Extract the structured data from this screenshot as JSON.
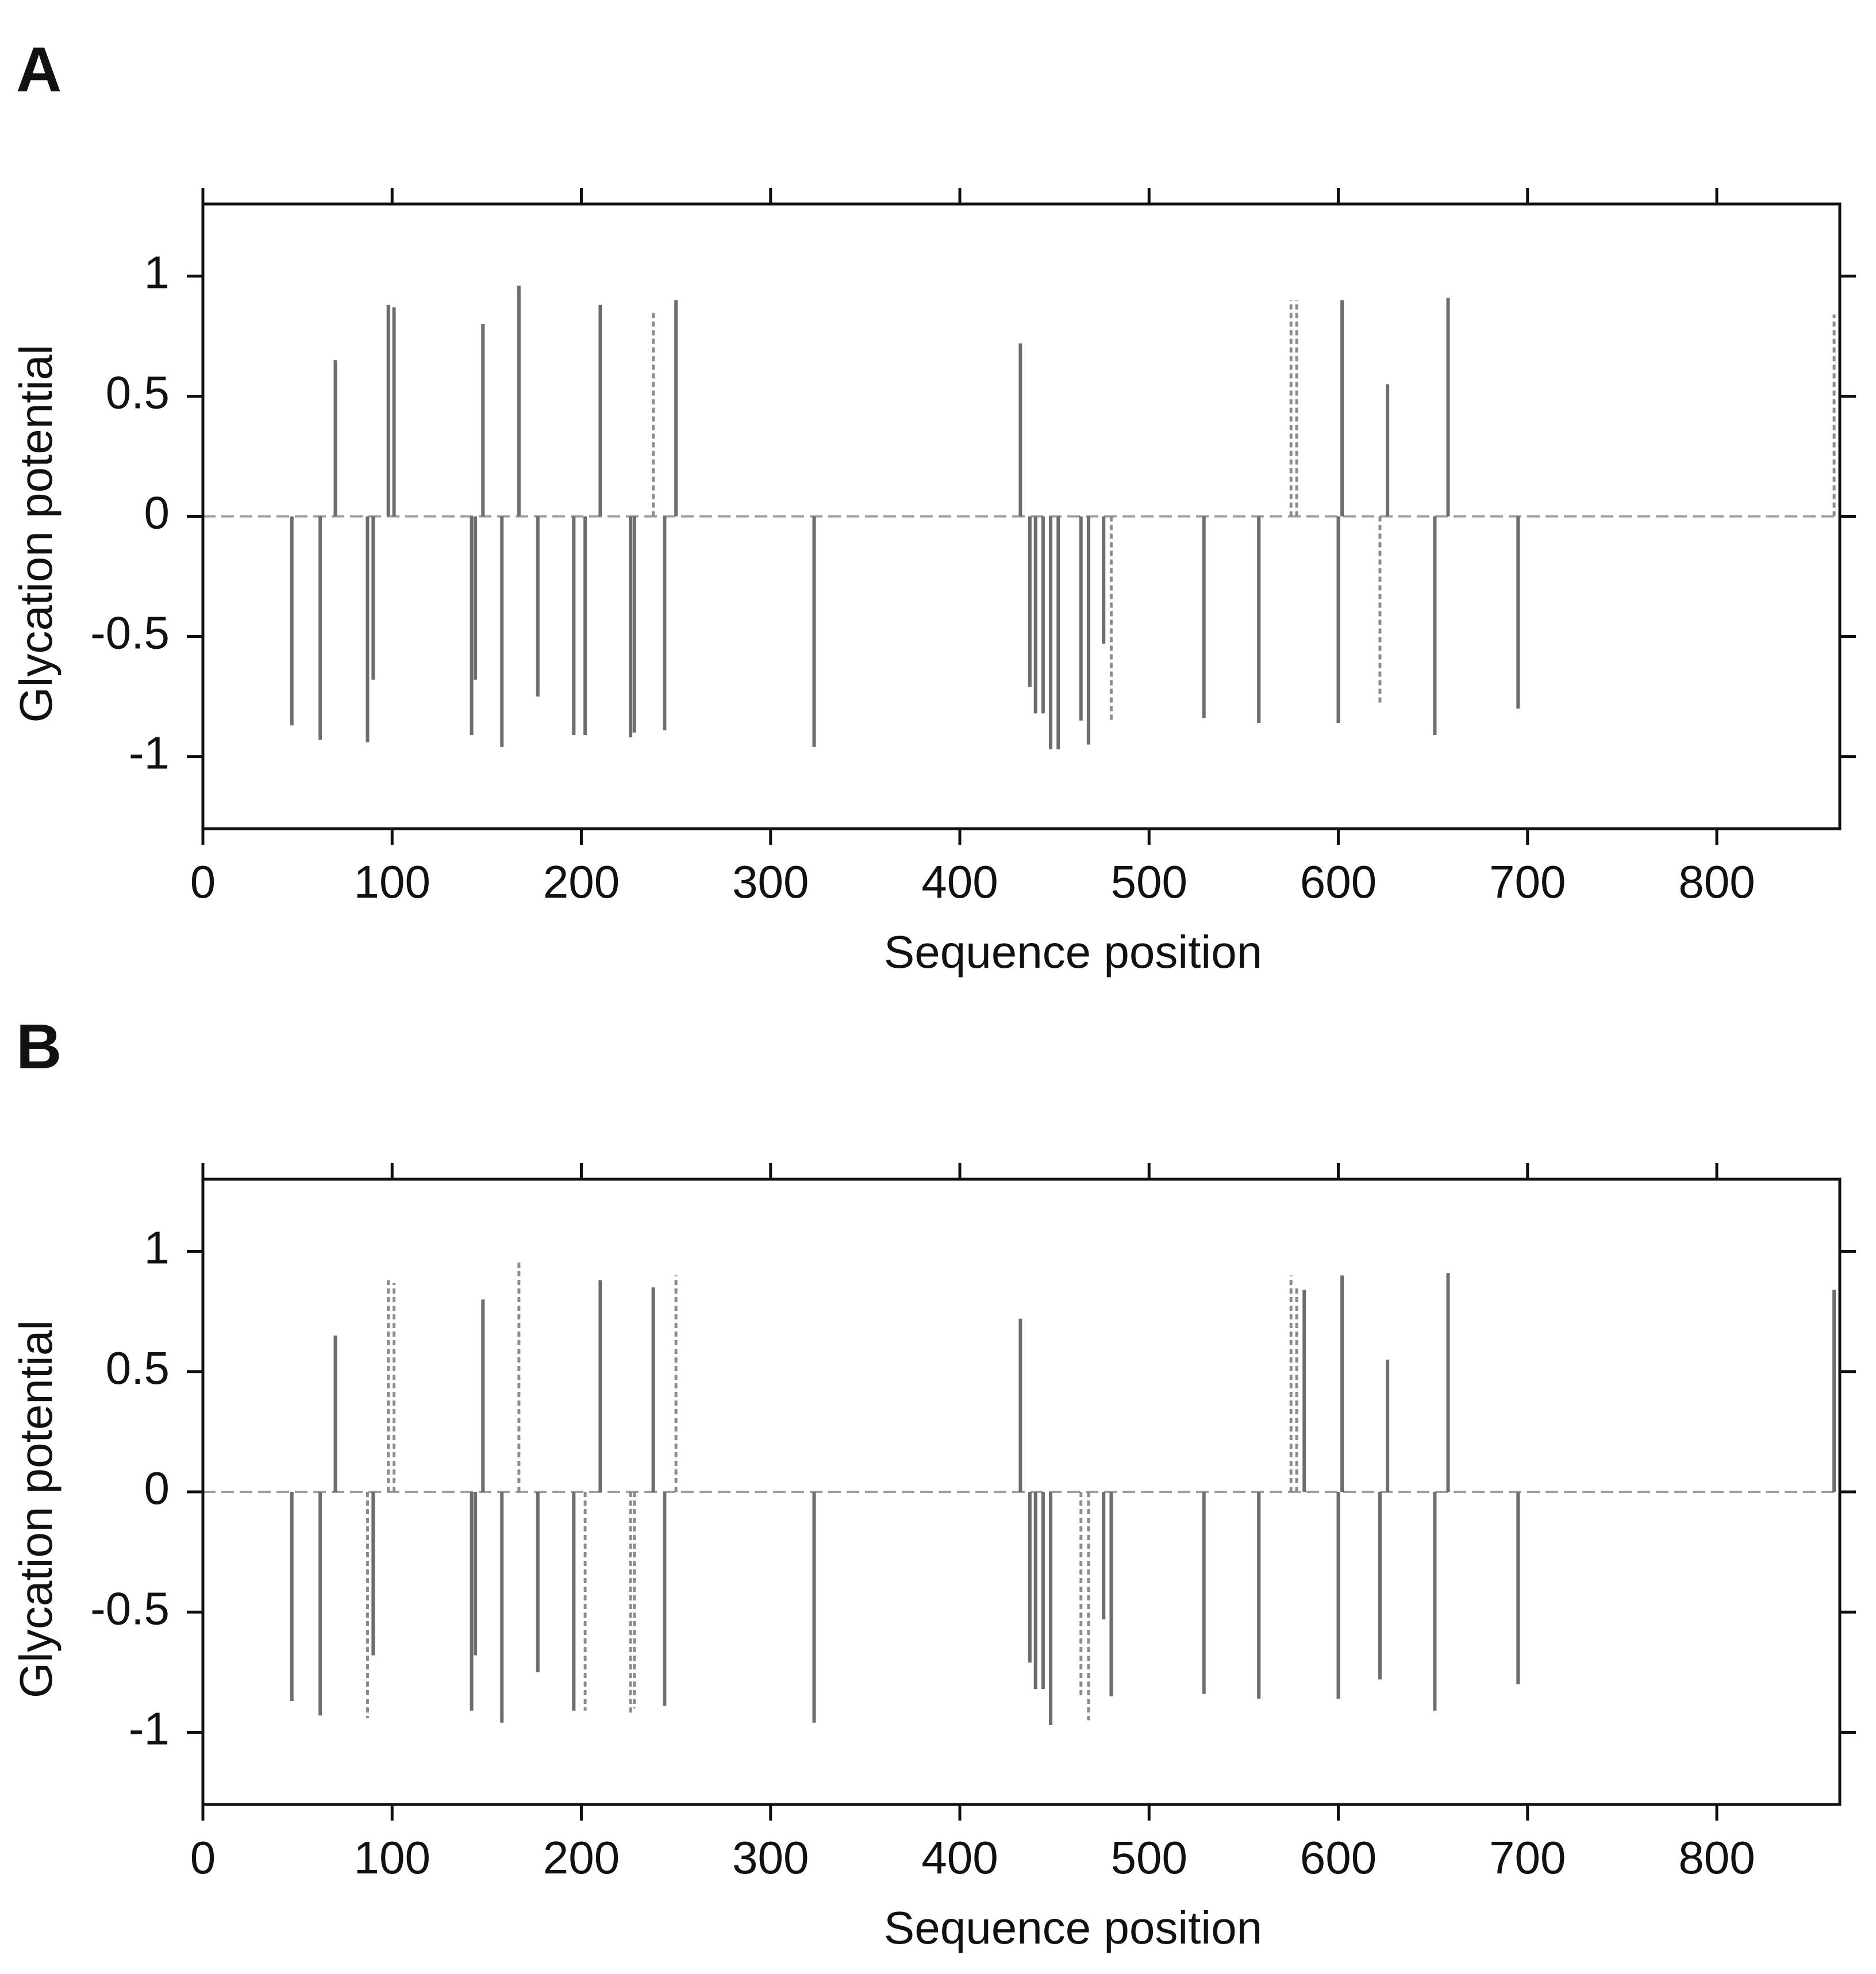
{
  "colors": {
    "solid": "#6d6d6d",
    "dashed": "#8c8c8c",
    "baseline": "#9e9e9e",
    "axis": "#111111"
  },
  "chart_data": [
    {
      "panel": "A",
      "type": "bar",
      "xlabel": "Sequence position",
      "ylabel": "Glycation potential",
      "xlim": [
        0,
        865
      ],
      "ylim": [
        -1.3,
        1.3
      ],
      "xticks": [
        "0",
        "100",
        "200",
        "300",
        "400",
        "500",
        "600",
        "700",
        "800"
      ],
      "yticks": [
        "1",
        "0.5",
        "0",
        "-0.5",
        "-1"
      ],
      "series": [
        {
          "name": "solid",
          "x": [
            47,
            62,
            70,
            87,
            90,
            98,
            101,
            142,
            144,
            148,
            158,
            167,
            177,
            196,
            202,
            210,
            226,
            228,
            244,
            250,
            323,
            432,
            437,
            440,
            444,
            448,
            452,
            464,
            468,
            476,
            529,
            558,
            600,
            602,
            626,
            651,
            658,
            695
          ],
          "values": [
            -0.87,
            -0.93,
            0.65,
            -0.94,
            -0.68,
            0.88,
            0.87,
            -0.91,
            -0.68,
            0.8,
            -0.96,
            0.96,
            -0.75,
            -0.91,
            -0.91,
            0.88,
            -0.92,
            -0.9,
            -0.89,
            0.9,
            -0.96,
            0.72,
            -0.71,
            -0.82,
            -0.82,
            -0.97,
            -0.97,
            -0.85,
            -0.95,
            -0.53,
            -0.84,
            -0.86,
            -0.86,
            0.9,
            0.55,
            -0.91,
            0.91,
            -0.8
          ]
        },
        {
          "name": "dashed",
          "x": [
            238,
            480,
            575,
            578,
            622,
            862
          ],
          "values": [
            0.85,
            -0.85,
            0.9,
            0.9,
            -0.78,
            0.84
          ]
        }
      ]
    },
    {
      "panel": "B",
      "type": "bar",
      "xlabel": "Sequence position",
      "ylabel": "Glycation potential",
      "xlim": [
        0,
        865
      ],
      "ylim": [
        -1.3,
        1.3
      ],
      "xticks": [
        "0",
        "100",
        "200",
        "300",
        "400",
        "500",
        "600",
        "700",
        "800"
      ],
      "yticks": [
        "1",
        "0.5",
        "0",
        "-0.5",
        "-1"
      ],
      "series": [
        {
          "name": "solid",
          "x": [
            47,
            62,
            70,
            90,
            142,
            144,
            148,
            158,
            177,
            196,
            210,
            238,
            244,
            323,
            432,
            437,
            440,
            444,
            448,
            476,
            480,
            529,
            558,
            582,
            600,
            602,
            622,
            626,
            651,
            658,
            695,
            862
          ],
          "values": [
            -0.87,
            -0.93,
            0.65,
            -0.68,
            -0.91,
            -0.68,
            0.8,
            -0.96,
            -0.75,
            -0.91,
            0.88,
            0.85,
            -0.89,
            -0.96,
            0.72,
            -0.71,
            -0.82,
            -0.82,
            -0.97,
            -0.53,
            -0.85,
            -0.84,
            -0.86,
            0.84,
            -0.86,
            0.9,
            -0.78,
            0.55,
            -0.91,
            0.91,
            -0.8,
            0.84
          ]
        },
        {
          "name": "dashed",
          "x": [
            87,
            98,
            101,
            167,
            202,
            226,
            228,
            250,
            464,
            468,
            575,
            578
          ],
          "values": [
            -0.94,
            0.88,
            0.87,
            0.96,
            -0.91,
            -0.92,
            -0.9,
            0.9,
            -0.85,
            -0.95,
            0.9,
            0.85
          ]
        }
      ]
    }
  ]
}
